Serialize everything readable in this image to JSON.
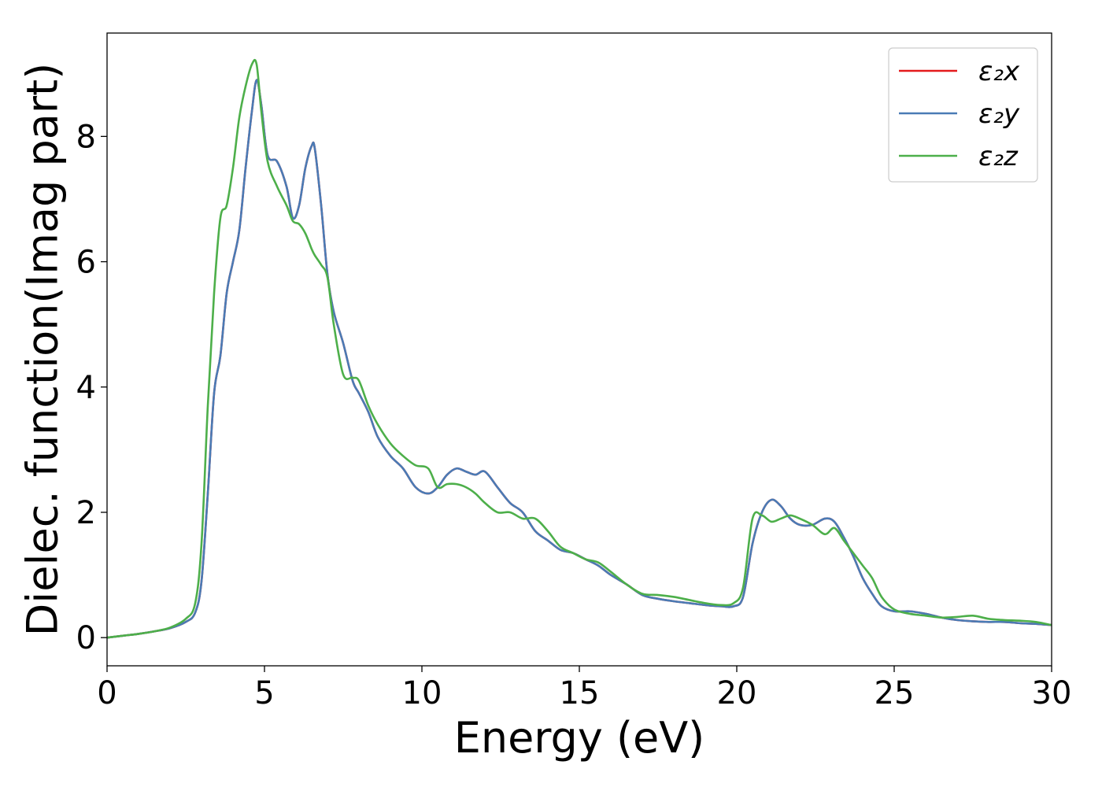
{
  "chart_data": {
    "type": "line",
    "xlabel": "Energy (eV)",
    "ylabel": "Dielec. function(Imag part)",
    "xlim": [
      0,
      30
    ],
    "ylim": [
      -0.45,
      9.65
    ],
    "xticks": [
      0,
      5,
      10,
      15,
      20,
      25,
      30
    ],
    "yticks": [
      0,
      2,
      4,
      6,
      8
    ],
    "grid": false,
    "legend_position": "top-right",
    "x": [
      0,
      0.5,
      1,
      1.5,
      2,
      2.5,
      2.8,
      3.0,
      3.2,
      3.4,
      3.6,
      3.8,
      4.0,
      4.2,
      4.4,
      4.6,
      4.75,
      4.9,
      5.1,
      5.4,
      5.7,
      5.9,
      6.1,
      6.3,
      6.5,
      6.6,
      6.8,
      7.0,
      7.2,
      7.5,
      7.8,
      8.0,
      8.3,
      8.6,
      9.0,
      9.4,
      9.8,
      10.2,
      10.5,
      10.8,
      11.1,
      11.4,
      11.7,
      12.0,
      12.4,
      12.8,
      13.2,
      13.6,
      14.0,
      14.4,
      14.8,
      15.2,
      15.6,
      16.0,
      16.5,
      17.0,
      17.5,
      18.0,
      18.5,
      19.0,
      19.5,
      19.9,
      20.2,
      20.5,
      20.8,
      21.1,
      21.4,
      21.7,
      22.0,
      22.4,
      22.8,
      23.1,
      23.4,
      23.7,
      24.0,
      24.3,
      24.6,
      25.0,
      25.5,
      26.0,
      26.5,
      27.0,
      27.5,
      28.0,
      28.5,
      29.0,
      29.5,
      30.0
    ],
    "series": [
      {
        "name": "ε₂x",
        "color": "#e41a1c",
        "values": [
          0.0,
          0.03,
          0.06,
          0.1,
          0.15,
          0.25,
          0.4,
          0.9,
          2.3,
          3.9,
          4.5,
          5.5,
          6.0,
          6.5,
          7.5,
          8.4,
          8.9,
          8.5,
          7.7,
          7.6,
          7.2,
          6.7,
          6.9,
          7.5,
          7.85,
          7.8,
          6.9,
          5.8,
          5.2,
          4.7,
          4.1,
          3.9,
          3.6,
          3.2,
          2.9,
          2.7,
          2.4,
          2.3,
          2.4,
          2.6,
          2.7,
          2.65,
          2.6,
          2.65,
          2.4,
          2.15,
          2.0,
          1.7,
          1.55,
          1.4,
          1.35,
          1.25,
          1.15,
          1.0,
          0.85,
          0.68,
          0.62,
          0.58,
          0.55,
          0.52,
          0.5,
          0.5,
          0.65,
          1.5,
          2.0,
          2.2,
          2.1,
          1.9,
          1.8,
          1.8,
          1.9,
          1.85,
          1.6,
          1.3,
          0.95,
          0.7,
          0.5,
          0.42,
          0.42,
          0.38,
          0.32,
          0.28,
          0.26,
          0.25,
          0.25,
          0.23,
          0.22,
          0.2
        ]
      },
      {
        "name": "ε₂y",
        "color": "#4a7bb5",
        "values": [
          0.0,
          0.03,
          0.06,
          0.1,
          0.15,
          0.25,
          0.4,
          0.9,
          2.3,
          3.9,
          4.5,
          5.5,
          6.0,
          6.5,
          7.5,
          8.4,
          8.9,
          8.5,
          7.7,
          7.6,
          7.2,
          6.7,
          6.9,
          7.5,
          7.85,
          7.8,
          6.9,
          5.8,
          5.2,
          4.7,
          4.1,
          3.9,
          3.6,
          3.2,
          2.9,
          2.7,
          2.4,
          2.3,
          2.4,
          2.6,
          2.7,
          2.65,
          2.6,
          2.65,
          2.4,
          2.15,
          2.0,
          1.7,
          1.55,
          1.4,
          1.35,
          1.25,
          1.15,
          1.0,
          0.85,
          0.68,
          0.62,
          0.58,
          0.55,
          0.52,
          0.5,
          0.5,
          0.65,
          1.5,
          2.0,
          2.2,
          2.1,
          1.9,
          1.8,
          1.8,
          1.9,
          1.85,
          1.6,
          1.3,
          0.95,
          0.7,
          0.5,
          0.42,
          0.42,
          0.38,
          0.32,
          0.28,
          0.26,
          0.25,
          0.25,
          0.23,
          0.22,
          0.2
        ]
      },
      {
        "name": "ε₂z",
        "color": "#4daf4a",
        "values": [
          0.0,
          0.03,
          0.06,
          0.1,
          0.16,
          0.3,
          0.55,
          1.5,
          3.7,
          5.5,
          6.7,
          6.9,
          7.5,
          8.3,
          8.8,
          9.15,
          9.15,
          8.4,
          7.6,
          7.2,
          6.9,
          6.65,
          6.6,
          6.45,
          6.2,
          6.1,
          5.95,
          5.75,
          5.0,
          4.2,
          4.15,
          4.1,
          3.7,
          3.4,
          3.1,
          2.9,
          2.75,
          2.7,
          2.4,
          2.45,
          2.45,
          2.4,
          2.3,
          2.15,
          2.0,
          2.0,
          1.9,
          1.9,
          1.7,
          1.45,
          1.35,
          1.25,
          1.2,
          1.05,
          0.85,
          0.7,
          0.68,
          0.65,
          0.6,
          0.55,
          0.52,
          0.55,
          0.8,
          1.9,
          1.95,
          1.85,
          1.9,
          1.95,
          1.9,
          1.8,
          1.65,
          1.75,
          1.55,
          1.35,
          1.15,
          0.95,
          0.65,
          0.45,
          0.38,
          0.35,
          0.32,
          0.33,
          0.35,
          0.3,
          0.28,
          0.27,
          0.25,
          0.2
        ]
      }
    ]
  }
}
